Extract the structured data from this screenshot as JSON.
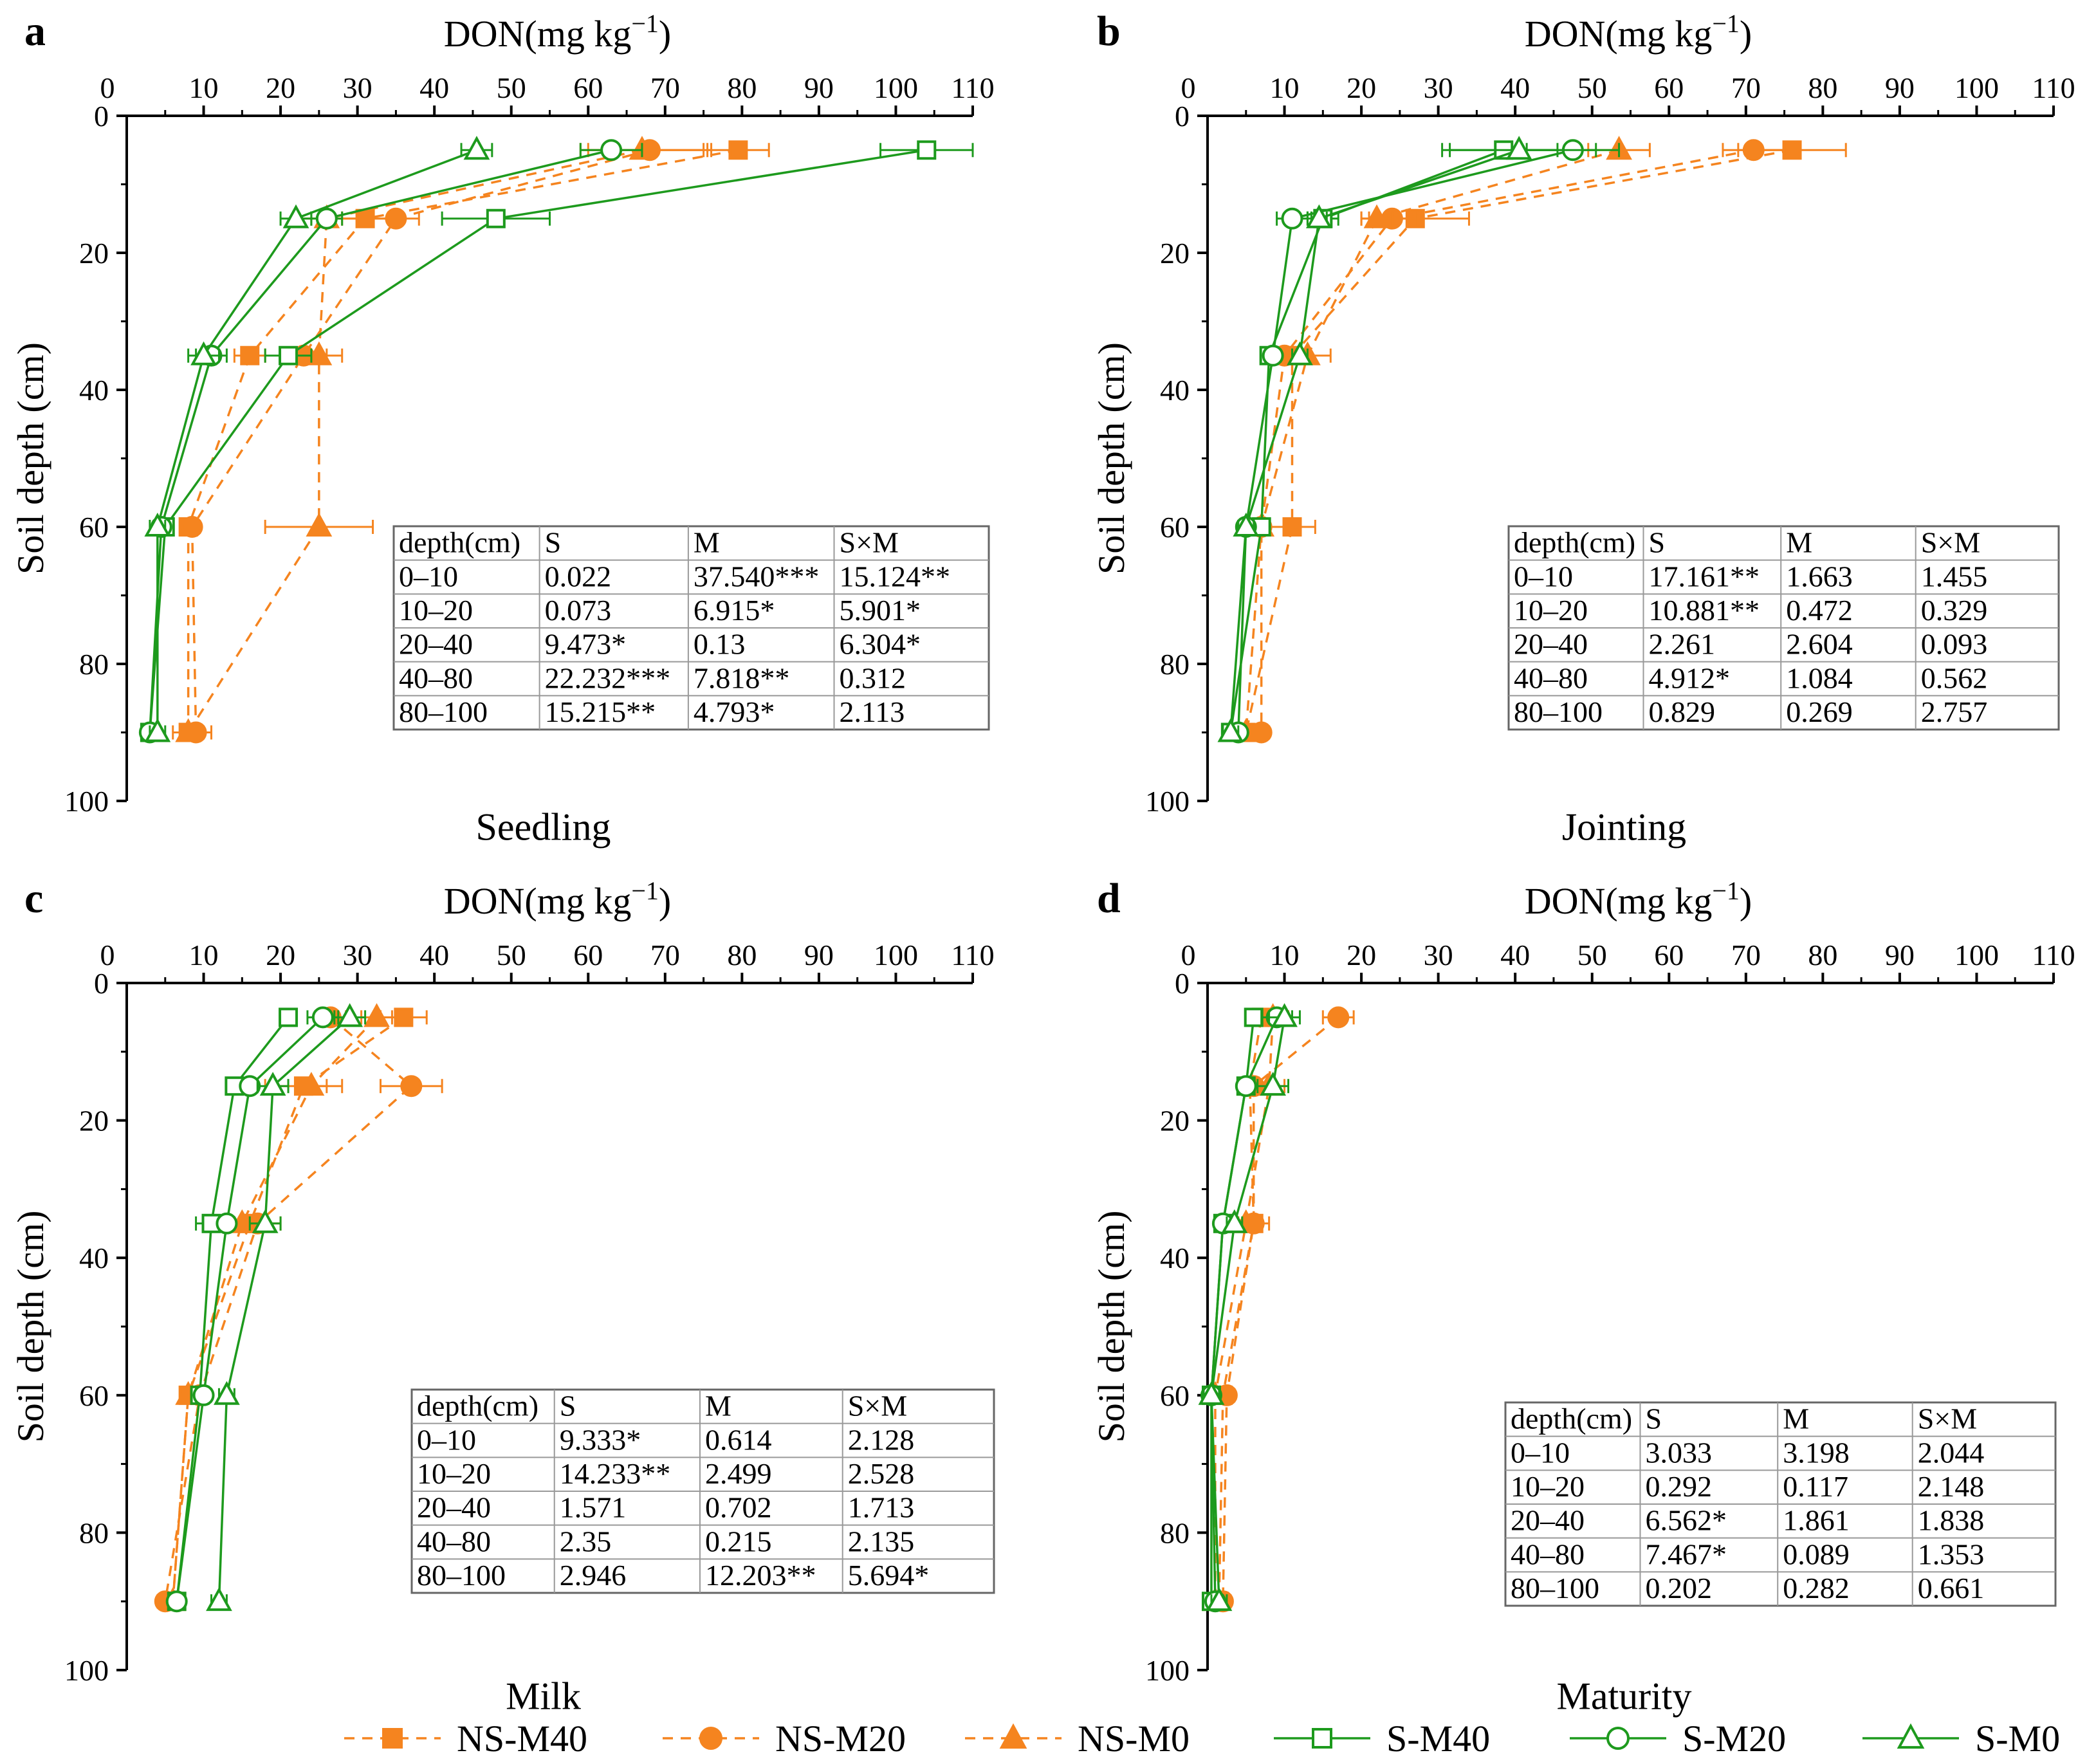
{
  "figure": {
    "xlabel": "DON(mg kg",
    "xlabel_sup": "−1",
    "xlabel_close": ")",
    "ylabel": "Soil depth (cm)",
    "colors": {
      "NS": "#f5841f",
      "S": "#1d9a1d"
    }
  },
  "legend": [
    {
      "name": "NS-M40",
      "group": "NS",
      "marker": "square-filled"
    },
    {
      "name": "NS-M20",
      "group": "NS",
      "marker": "circle-filled"
    },
    {
      "name": "NS-M0",
      "group": "NS",
      "marker": "triangle-filled"
    },
    {
      "name": "S-M40",
      "group": "S",
      "marker": "square-open"
    },
    {
      "name": "S-M20",
      "group": "S",
      "marker": "circle-open"
    },
    {
      "name": "S-M0",
      "group": "S",
      "marker": "triangle-open"
    }
  ],
  "chart_data": [
    {
      "type": "line",
      "panel_label": "a",
      "title": "Seedling",
      "xlabel": "DON(mg kg−1)",
      "ylabel": "Soil depth (cm)",
      "xlim": [
        0,
        110
      ],
      "ylim": [
        0,
        100
      ],
      "xticks": [
        10,
        20,
        30,
        40,
        50,
        60,
        70,
        80,
        90,
        100,
        110
      ],
      "yticks": [
        0,
        20,
        40,
        60,
        80,
        100
      ],
      "depths": [
        5,
        15,
        35,
        60,
        90
      ],
      "series": [
        {
          "name": "NS-M40",
          "values": [
            79.5,
            31,
            16,
            8,
            8
          ],
          "errors": [
            4,
            3,
            2,
            1,
            1
          ]
        },
        {
          "name": "NS-M20",
          "values": [
            68,
            35,
            23,
            8.5,
            9
          ],
          "errors": [
            8,
            3,
            3,
            1,
            2
          ]
        },
        {
          "name": "NS-M0",
          "values": [
            67,
            26,
            25,
            25,
            8
          ],
          "errors": [
            8,
            4,
            3,
            7,
            2
          ]
        },
        {
          "name": "S-M40",
          "values": [
            104,
            48,
            21,
            5,
            3
          ],
          "errors": [
            6,
            7,
            3,
            1,
            1
          ]
        },
        {
          "name": "S-M20",
          "values": [
            63,
            26,
            11,
            4.5,
            3
          ],
          "errors": [
            4,
            2,
            2,
            1,
            1
          ]
        },
        {
          "name": "S-M0",
          "values": [
            45.5,
            22,
            10,
            4,
            4
          ],
          "errors": [
            2,
            2,
            2,
            1,
            1
          ]
        }
      ],
      "anova_table": {
        "headers": [
          "depth(cm)",
          "S",
          "M",
          "S×M"
        ],
        "rows": [
          [
            "0–10",
            "0.022",
            "37.540***",
            "15.124**"
          ],
          [
            "10–20",
            "0.073",
            "6.915*",
            "5.901*"
          ],
          [
            "20–40",
            "9.473*",
            "0.13",
            "6.304*"
          ],
          [
            "40–80",
            "22.232***",
            "7.818**",
            "0.312"
          ],
          [
            "80–100",
            "15.215**",
            "4.793*",
            "2.113"
          ]
        ]
      }
    },
    {
      "type": "line",
      "panel_label": "b",
      "title": "Jointing",
      "xlabel": "DON(mg kg−1)",
      "ylabel": "Soil depth (cm)",
      "xlim": [
        0,
        110
      ],
      "ylim": [
        0,
        100
      ],
      "xticks": [
        10,
        20,
        30,
        40,
        50,
        60,
        70,
        80,
        90,
        100,
        110
      ],
      "yticks": [
        0,
        20,
        40,
        60,
        80,
        100
      ],
      "depths": [
        5,
        15,
        35,
        60,
        90
      ],
      "series": [
        {
          "name": "NS-M40",
          "values": [
            76,
            27,
            11,
            11,
            5
          ],
          "errors": [
            7,
            7,
            1,
            3,
            1
          ]
        },
        {
          "name": "NS-M20",
          "values": [
            71,
            24,
            10,
            7,
            7
          ],
          "errors": [
            4,
            3,
            1,
            1,
            1
          ]
        },
        {
          "name": "NS-M0",
          "values": [
            53.5,
            22,
            13,
            7,
            5
          ],
          "errors": [
            4,
            2,
            3,
            1,
            1
          ]
        },
        {
          "name": "S-M40",
          "values": [
            38.5,
            15,
            8,
            7,
            3
          ],
          "errors": [
            7,
            2,
            1,
            1,
            1
          ]
        },
        {
          "name": "S-M20",
          "values": [
            47.5,
            11,
            8.5,
            5,
            4
          ],
          "errors": [
            6,
            2,
            1,
            1,
            1
          ]
        },
        {
          "name": "S-M0",
          "values": [
            40.5,
            14.5,
            12,
            5,
            3
          ],
          "errors": [
            10,
            1,
            1,
            1,
            1
          ]
        }
      ],
      "anova_table": {
        "headers": [
          "depth(cm)",
          "S",
          "M",
          "S×M"
        ],
        "rows": [
          [
            "0–10",
            "17.161**",
            "1.663",
            "1.455"
          ],
          [
            "10–20",
            "10.881**",
            "0.472",
            "0.329"
          ],
          [
            "20–40",
            "2.261",
            "2.604",
            "0.093"
          ],
          [
            "40–80",
            "4.912*",
            "1.084",
            "0.562"
          ],
          [
            "80–100",
            "0.829",
            "0.269",
            "2.757"
          ]
        ]
      }
    },
    {
      "type": "line",
      "panel_label": "c",
      "title": "Milk",
      "xlabel": "DON(mg kg−1)",
      "ylabel": "Soil depth (cm)",
      "xlim": [
        0,
        110
      ],
      "ylim": [
        0,
        100
      ],
      "xticks": [
        10,
        20,
        30,
        40,
        50,
        60,
        70,
        80,
        90,
        100,
        110
      ],
      "yticks": [
        0,
        20,
        40,
        60,
        80,
        100
      ],
      "depths": [
        5,
        15,
        35,
        60,
        90
      ],
      "series": [
        {
          "name": "NS-M40",
          "values": [
            36,
            23,
            16,
            8,
            6
          ],
          "errors": [
            3,
            5,
            2,
            1,
            1
          ]
        },
        {
          "name": "NS-M20",
          "values": [
            26.5,
            37,
            17,
            9.5,
            5
          ],
          "errors": [
            2,
            4,
            3,
            1,
            1
          ]
        },
        {
          "name": "NS-M0",
          "values": [
            32.5,
            24,
            15,
            8,
            6
          ],
          "errors": [
            2,
            2,
            2,
            1,
            1
          ]
        },
        {
          "name": "S-M40",
          "values": [
            21,
            14,
            11,
            9.5,
            6.5
          ],
          "errors": [
            1,
            1,
            2,
            1,
            1
          ]
        },
        {
          "name": "S-M20",
          "values": [
            25.5,
            16,
            13,
            10,
            6.5
          ],
          "errors": [
            2,
            1,
            1,
            1,
            1
          ]
        },
        {
          "name": "S-M0",
          "values": [
            29,
            19,
            18,
            13,
            12
          ],
          "errors": [
            2,
            2,
            2,
            1,
            1
          ]
        }
      ],
      "anova_table": {
        "headers": [
          "depth(cm)",
          "S",
          "M",
          "S×M"
        ],
        "rows": [
          [
            "0–10",
            "9.333*",
            "0.614",
            "2.128"
          ],
          [
            "10–20",
            "14.233**",
            "2.499",
            "2.528"
          ],
          [
            "20–40",
            "1.571",
            "0.702",
            "1.713"
          ],
          [
            "40–80",
            "2.35",
            "0.215",
            "2.135"
          ],
          [
            "80–100",
            "2.946",
            "12.203**",
            "5.694*"
          ]
        ]
      }
    },
    {
      "type": "line",
      "panel_label": "d",
      "title": "Maturity",
      "xlabel": "DON(mg kg−1)",
      "ylabel": "Soil depth (cm)",
      "xlim": [
        0,
        110
      ],
      "ylim": [
        0,
        100
      ],
      "xticks": [
        10,
        20,
        30,
        40,
        50,
        60,
        70,
        80,
        90,
        100,
        110
      ],
      "yticks": [
        0,
        20,
        40,
        60,
        80,
        100
      ],
      "depths": [
        5,
        15,
        35,
        60,
        90
      ],
      "series": [
        {
          "name": "NS-M40",
          "values": [
            7,
            5.5,
            6,
            2,
            1.5
          ],
          "errors": [
            2,
            1,
            2,
            1,
            1
          ]
        },
        {
          "name": "NS-M20",
          "values": [
            17,
            6,
            6,
            2.5,
            2
          ],
          "errors": [
            2,
            1,
            1,
            1,
            1
          ]
        },
        {
          "name": "NS-M0",
          "values": [
            8.5,
            8,
            5,
            1,
            1
          ],
          "errors": [
            2,
            2,
            1,
            1,
            1
          ]
        },
        {
          "name": "S-M40",
          "values": [
            6,
            5,
            2,
            0.5,
            0.5
          ],
          "errors": [
            1,
            1,
            1,
            1,
            1
          ]
        },
        {
          "name": "S-M20",
          "values": [
            9,
            5,
            2,
            0.5,
            1
          ],
          "errors": [
            2,
            1,
            1,
            1,
            1
          ]
        },
        {
          "name": "S-M0",
          "values": [
            10,
            8.5,
            3.5,
            0.5,
            1.5
          ],
          "errors": [
            2,
            2,
            1,
            1,
            1
          ]
        }
      ],
      "anova_table": {
        "headers": [
          "depth(cm)",
          "S",
          "M",
          "S×M"
        ],
        "rows": [
          [
            "0–10",
            "3.033",
            "3.198",
            "2.044"
          ],
          [
            "10–20",
            "0.292",
            "0.117",
            "2.148"
          ],
          [
            "20–40",
            "6.562*",
            "1.861",
            "1.838"
          ],
          [
            "40–80",
            "7.467*",
            "0.089",
            "1.353"
          ],
          [
            "80–100",
            "0.202",
            "0.282",
            "0.661"
          ]
        ]
      }
    }
  ]
}
